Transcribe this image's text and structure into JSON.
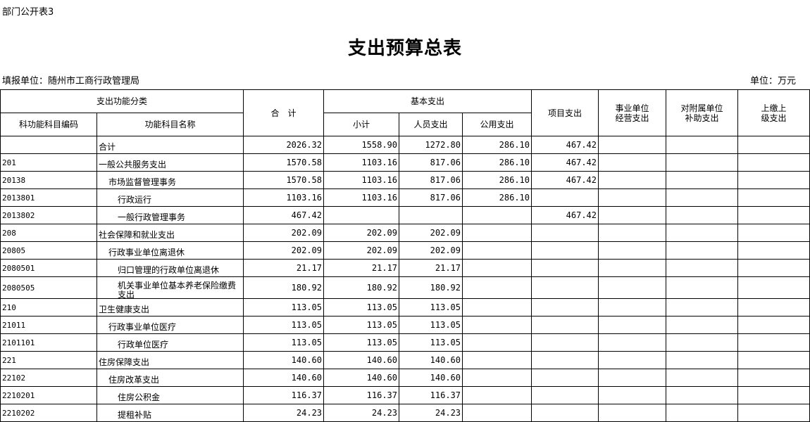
{
  "header": {
    "label": "部门公开表3",
    "title": "支出预算总表",
    "unit_left": "填报单位：随州市工商行政管理局",
    "unit_right": "单位：万元"
  },
  "columns": {
    "func_class": "支出功能分类",
    "code": "科功能科目编码",
    "name": "功能科目名称",
    "total": "合　计",
    "basic": "基本支出",
    "subtotal": "小计",
    "personnel": "人员支出",
    "public": "公用支出",
    "project": "项目支出",
    "business": "事业单位\n经营支出",
    "subsidy": "对附属单位\n补助支出",
    "remit": "上缴上\n级支出"
  },
  "rows": [
    {
      "code": "",
      "name": "合计",
      "level": 0,
      "total": "2026.32",
      "subtotal": "1558.90",
      "personnel": "1272.80",
      "public": "286.10",
      "project": "467.42"
    },
    {
      "code": "201",
      "name": "一般公共服务支出",
      "level": 0,
      "total": "1570.58",
      "subtotal": "1103.16",
      "personnel": "817.06",
      "public": "286.10",
      "project": "467.42"
    },
    {
      "code": "20138",
      "name": "市场监督管理事务",
      "level": 1,
      "total": "1570.58",
      "subtotal": "1103.16",
      "personnel": "817.06",
      "public": "286.10",
      "project": "467.42"
    },
    {
      "code": "2013801",
      "name": "行政运行",
      "level": 2,
      "total": "1103.16",
      "subtotal": "1103.16",
      "personnel": "817.06",
      "public": "286.10",
      "project": ""
    },
    {
      "code": "2013802",
      "name": "一般行政管理事务",
      "level": 2,
      "total": "467.42",
      "subtotal": "",
      "personnel": "",
      "public": "",
      "project": "467.42"
    },
    {
      "code": "208",
      "name": "社会保障和就业支出",
      "level": 0,
      "total": "202.09",
      "subtotal": "202.09",
      "personnel": "202.09",
      "public": "",
      "project": ""
    },
    {
      "code": "20805",
      "name": "行政事业单位离退休",
      "level": 1,
      "total": "202.09",
      "subtotal": "202.09",
      "personnel": "202.09",
      "public": "",
      "project": ""
    },
    {
      "code": "2080501",
      "name": "归口管理的行政单位离退休",
      "level": 2,
      "total": "21.17",
      "subtotal": "21.17",
      "personnel": "21.17",
      "public": "",
      "project": ""
    },
    {
      "code": "2080505",
      "name": "机关事业单位基本养老保险缴费支出",
      "level": 2,
      "total": "180.92",
      "subtotal": "180.92",
      "personnel": "180.92",
      "public": "",
      "project": ""
    },
    {
      "code": "210",
      "name": "卫生健康支出",
      "level": 0,
      "total": "113.05",
      "subtotal": "113.05",
      "personnel": "113.05",
      "public": "",
      "project": ""
    },
    {
      "code": "21011",
      "name": "行政事业单位医疗",
      "level": 1,
      "total": "113.05",
      "subtotal": "113.05",
      "personnel": "113.05",
      "public": "",
      "project": ""
    },
    {
      "code": "2101101",
      "name": "行政单位医疗",
      "level": 2,
      "total": "113.05",
      "subtotal": "113.05",
      "personnel": "113.05",
      "public": "",
      "project": ""
    },
    {
      "code": "221",
      "name": "住房保障支出",
      "level": 0,
      "total": "140.60",
      "subtotal": "140.60",
      "personnel": "140.60",
      "public": "",
      "project": ""
    },
    {
      "code": "22102",
      "name": "住房改革支出",
      "level": 1,
      "total": "140.60",
      "subtotal": "140.60",
      "personnel": "140.60",
      "public": "",
      "project": ""
    },
    {
      "code": "2210201",
      "name": "住房公积金",
      "level": 2,
      "total": "116.37",
      "subtotal": "116.37",
      "personnel": "116.37",
      "public": "",
      "project": ""
    },
    {
      "code": "2210202",
      "name": "提租补贴",
      "level": 2,
      "total": "24.23",
      "subtotal": "24.23",
      "personnel": "24.23",
      "public": "",
      "project": ""
    }
  ]
}
